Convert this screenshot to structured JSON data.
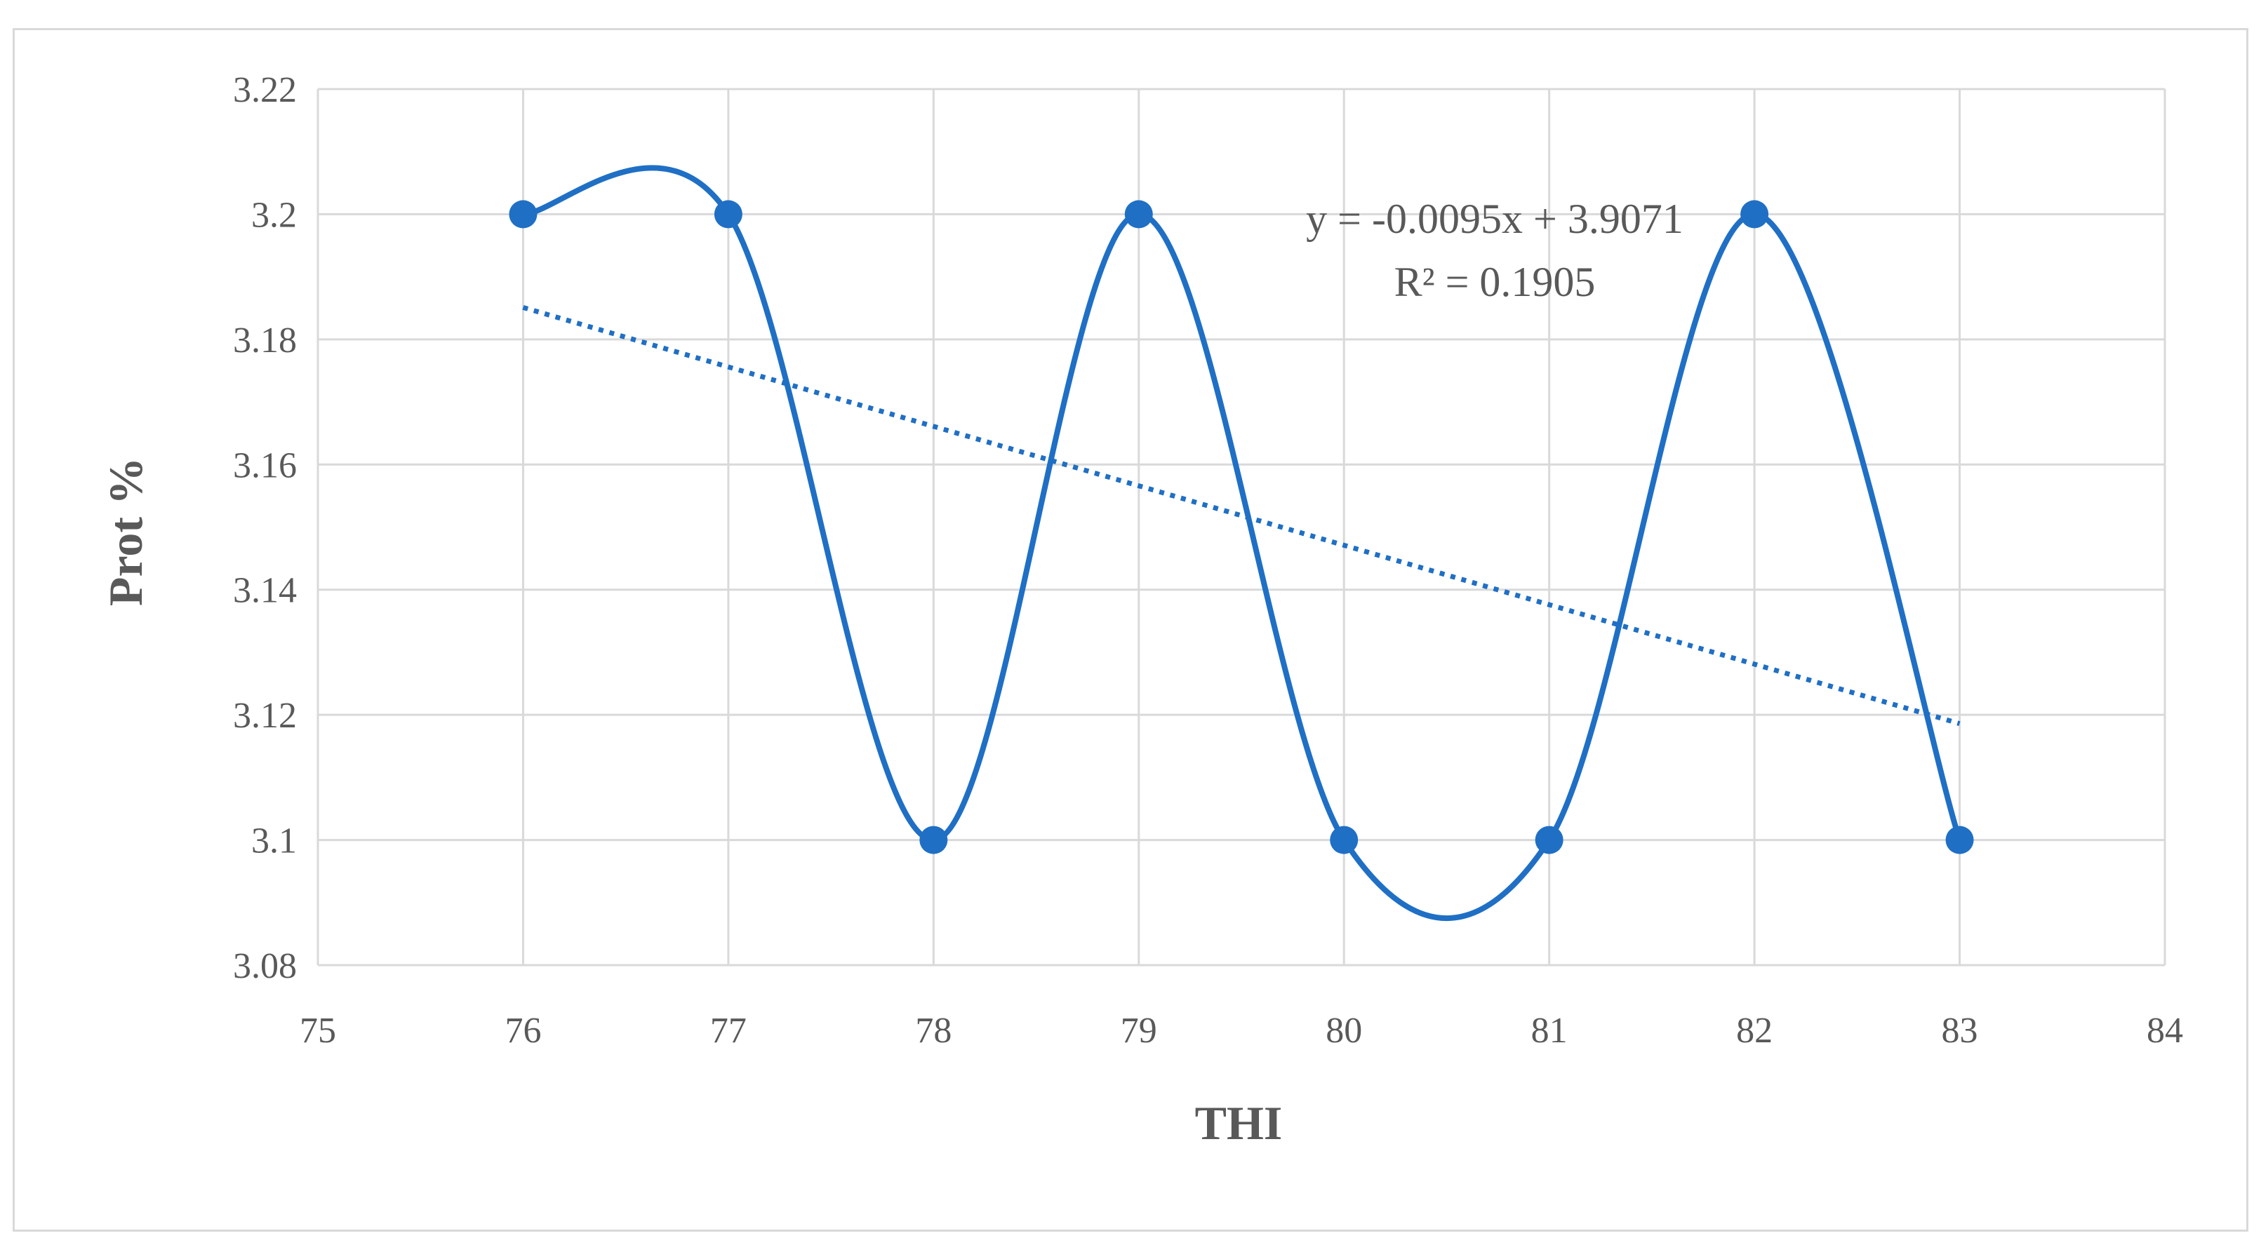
{
  "chart_data": {
    "type": "scatter",
    "xlabel": "THI",
    "ylabel": "Prot %",
    "xlim": [
      75,
      84
    ],
    "ylim": [
      3.08,
      3.22
    ],
    "x_ticks": [
      "75",
      "76",
      "77",
      "78",
      "79",
      "80",
      "81",
      "82",
      "83",
      "84"
    ],
    "y_ticks": [
      "3.08",
      "3.1",
      "3.12",
      "3.14",
      "3.16",
      "3.18",
      "3.2",
      "3.22"
    ],
    "grid": true,
    "legend": "none",
    "series": [
      {
        "x": [
          76,
          77,
          78,
          79,
          80,
          81,
          82,
          83
        ],
        "y": [
          3.2,
          3.2,
          3.1,
          3.2,
          3.1,
          3.1,
          3.2,
          3.1
        ],
        "style": "smoothed line with markers",
        "color": "#1f6fc5"
      }
    ],
    "trendline": {
      "type": "linear",
      "slope": -0.0095,
      "intercept": 3.9071,
      "x_range": [
        76,
        83
      ],
      "style": "dotted",
      "color": "#1f6fc5",
      "equation_label": "y = -0.0095x + 3.9071",
      "r2_label": "R² = 0.1905"
    }
  }
}
